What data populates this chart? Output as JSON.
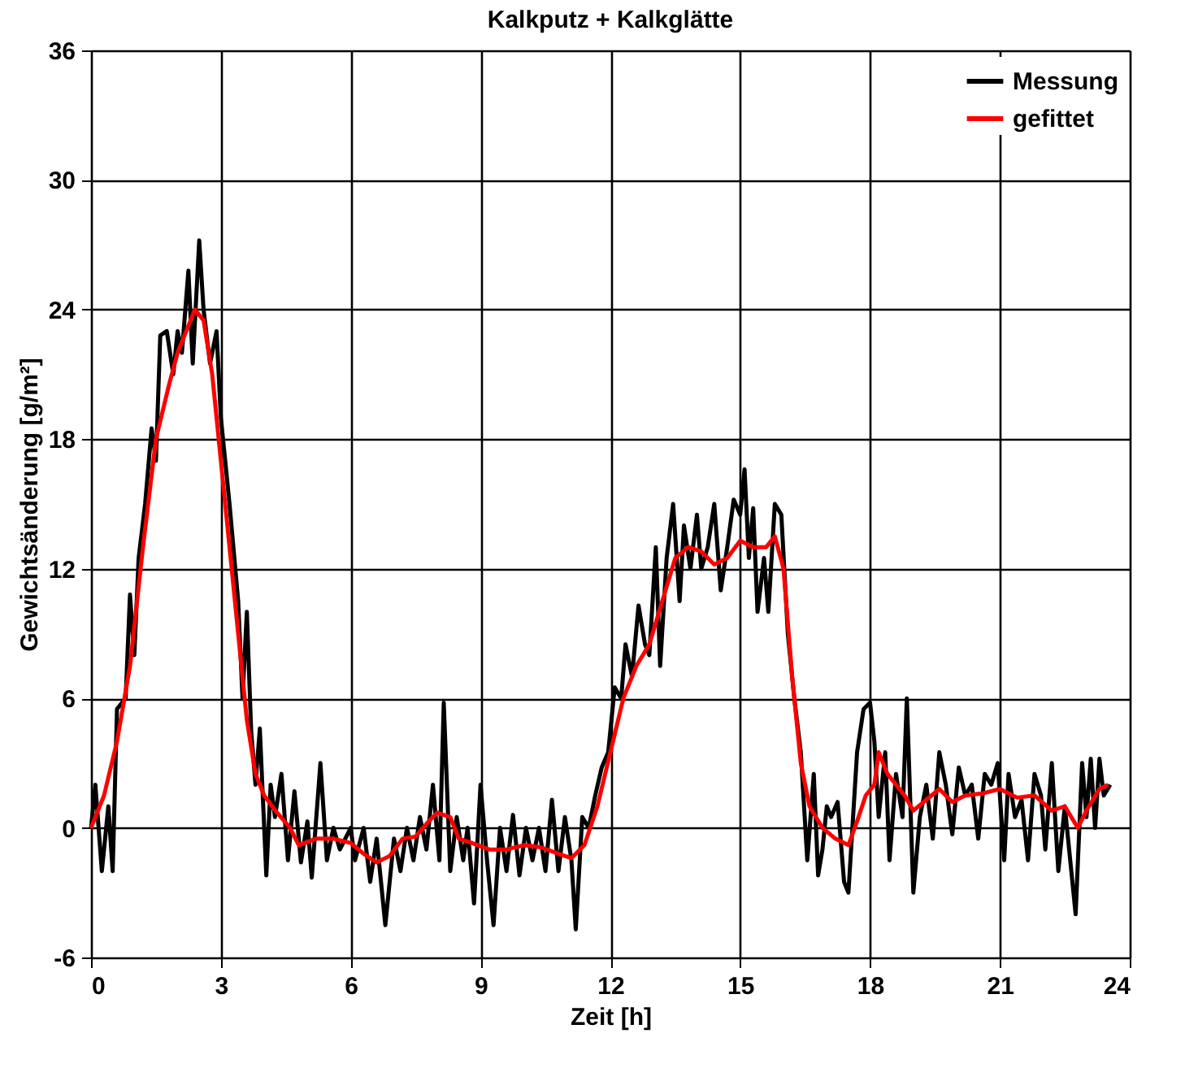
{
  "chart_data": {
    "type": "line",
    "title": "Kalkputz + Kalkglätte",
    "xlabel": "Zeit [h]",
    "ylabel": "Gewichtsänderung [g/m²]",
    "xlim": [
      0,
      24
    ],
    "xticks": [
      0,
      3,
      6,
      9,
      12,
      15,
      18,
      21,
      24
    ],
    "ylim": [
      -6,
      36
    ],
    "yticks": [
      -6,
      0,
      6,
      12,
      18,
      24,
      30,
      36
    ],
    "grid": true,
    "legend": "top right",
    "line_style": "solid",
    "marker": "none",
    "series": [
      {
        "name": "Messung",
        "color": "#000000",
        "x": [
          0,
          0.1,
          0.25,
          0.4,
          0.5,
          0.6,
          0.8,
          0.9,
          1.0,
          1.1,
          1.25,
          1.4,
          1.5,
          1.6,
          1.75,
          1.9,
          2.0,
          2.1,
          2.25,
          2.35,
          2.5,
          2.6,
          2.75,
          2.9,
          3.0,
          3.2,
          3.4,
          3.5,
          3.6,
          3.7,
          3.8,
          3.9,
          4.05,
          4.15,
          4.25,
          4.4,
          4.55,
          4.7,
          4.85,
          5.0,
          5.1,
          5.3,
          5.45,
          5.6,
          5.75,
          6.0,
          6.1,
          6.3,
          6.45,
          6.6,
          6.8,
          7.0,
          7.15,
          7.3,
          7.45,
          7.6,
          7.75,
          7.9,
          8.05,
          8.15,
          8.3,
          8.45,
          8.6,
          8.7,
          8.85,
          9.0,
          9.15,
          9.3,
          9.45,
          9.6,
          9.75,
          9.9,
          10.05,
          10.2,
          10.35,
          10.5,
          10.65,
          10.8,
          10.95,
          11.1,
          11.2,
          11.35,
          11.5,
          11.65,
          11.8,
          11.95,
          12.1,
          12.25,
          12.35,
          12.5,
          12.65,
          12.8,
          12.9,
          13.05,
          13.15,
          13.3,
          13.45,
          13.6,
          13.7,
          13.85,
          14.0,
          14.1,
          14.25,
          14.4,
          14.55,
          14.7,
          14.85,
          15.0,
          15.1,
          15.2,
          15.3,
          15.4,
          15.55,
          15.65,
          15.8,
          15.95,
          16.1,
          16.25,
          16.4,
          16.55,
          16.7,
          16.8,
          16.9,
          17.0,
          17.1,
          17.25,
          17.4,
          17.5,
          17.7,
          17.85,
          18.0,
          18.1,
          18.2,
          18.35,
          18.45,
          18.6,
          18.75,
          18.85,
          19.0,
          19.15,
          19.3,
          19.45,
          19.6,
          19.75,
          19.9,
          20.05,
          20.2,
          20.35,
          20.5,
          20.65,
          20.8,
          20.95,
          21.1,
          21.2,
          21.35,
          21.5,
          21.65,
          21.8,
          21.95,
          22.05,
          22.2,
          22.35,
          22.5,
          22.6,
          22.75,
          22.9,
          23.0,
          23.1,
          23.2,
          23.3,
          23.4,
          23.55
        ],
        "values": [
          0,
          2,
          -2,
          1,
          -2,
          5.5,
          6,
          10.8,
          8,
          12.5,
          15,
          18.5,
          17,
          22.8,
          23,
          21,
          23,
          22,
          25.8,
          21.5,
          27.2,
          24,
          21.5,
          23,
          19,
          15,
          10.5,
          6,
          10,
          4.5,
          2,
          4.6,
          -2.2,
          2,
          0.5,
          2.5,
          -1.5,
          1.7,
          -1.6,
          0.3,
          -2.3,
          3,
          -1.5,
          0,
          -1,
          0,
          -1.5,
          0,
          -2.5,
          -0.5,
          -4.5,
          -0.5,
          -2,
          0,
          -1.5,
          0.5,
          -1,
          2,
          -1.5,
          5.8,
          -2,
          0.5,
          -1.5,
          0,
          -3.5,
          2,
          -1.5,
          -4.5,
          0,
          -2,
          0.6,
          -2.2,
          0,
          -1.5,
          0,
          -2,
          1.3,
          -2,
          0.5,
          -1.5,
          -4.7,
          0.5,
          0,
          1.5,
          2.8,
          3.5,
          6.5,
          6,
          8.5,
          7,
          10.3,
          8.5,
          8,
          13,
          7.5,
          12.5,
          15,
          10.5,
          14,
          12,
          14.5,
          12,
          13,
          15,
          11,
          13,
          15.2,
          14.5,
          16.6,
          12.5,
          14.8,
          10,
          12.5,
          10,
          15,
          14.5,
          9,
          6,
          3.5,
          -1.5,
          2.5,
          -2.2,
          -1,
          1,
          0.5,
          1.2,
          -2.5,
          -3,
          3.5,
          5.5,
          5.8,
          4,
          0.5,
          3.5,
          -1.5,
          2.5,
          0.5,
          6,
          -3,
          0.5,
          2,
          -0.5,
          3.5,
          2,
          -0.3,
          2.8,
          1.5,
          2,
          -0.5,
          2.5,
          2,
          3,
          -1.5,
          2.5,
          0.5,
          1.3,
          -1.5,
          2.5,
          1.5,
          -1,
          3,
          -2,
          1,
          -1,
          -4,
          3,
          0.5,
          3.2,
          0,
          3.2,
          1.5,
          2
        ]
      },
      {
        "name": "gefittet",
        "color": "#ff0000",
        "x": [
          0,
          0.3,
          0.6,
          0.9,
          1.2,
          1.5,
          1.8,
          2.0,
          2.2,
          2.4,
          2.6,
          2.8,
          3.0,
          3.2,
          3.4,
          3.6,
          3.8,
          4.0,
          4.3,
          4.6,
          4.8,
          5.2,
          5.6,
          6.0,
          6.3,
          6.6,
          6.9,
          7.2,
          7.5,
          7.8,
          8.0,
          8.3,
          8.5,
          8.8,
          9.2,
          9.6,
          10.0,
          10.4,
          10.8,
          11.1,
          11.4,
          11.7,
          12.0,
          12.3,
          12.6,
          12.9,
          13.2,
          13.5,
          13.8,
          14.1,
          14.4,
          14.7,
          15.0,
          15.3,
          15.6,
          15.8,
          16.0,
          16.2,
          16.4,
          16.6,
          16.9,
          17.2,
          17.5,
          17.7,
          17.9,
          18.1,
          18.2,
          18.4,
          18.6,
          18.8,
          19.0,
          19.3,
          19.6,
          19.9,
          20.2,
          20.6,
          21.0,
          21.4,
          21.8,
          22.2,
          22.5,
          22.8,
          23.0,
          23.3,
          23.5
        ],
        "values": [
          0,
          1.5,
          4,
          7.5,
          13,
          18,
          20.5,
          22,
          23,
          24,
          23.5,
          21,
          17,
          13,
          9,
          5,
          2.5,
          1.5,
          0.7,
          0,
          -0.8,
          -0.5,
          -0.5,
          -0.7,
          -1.2,
          -1.6,
          -1.3,
          -0.5,
          -0.4,
          0.3,
          0.7,
          0.5,
          -0.5,
          -0.7,
          -1,
          -1,
          -0.8,
          -0.9,
          -1.2,
          -1.4,
          -0.8,
          1,
          3.5,
          6,
          7.5,
          8.5,
          10.5,
          12.5,
          13,
          12.8,
          12.2,
          12.5,
          13.3,
          13,
          13,
          13.5,
          12,
          7,
          3,
          1,
          0,
          -0.5,
          -0.8,
          0.3,
          1.5,
          2,
          3.5,
          2.5,
          2,
          1.5,
          0.8,
          1.3,
          1.8,
          1.2,
          1.5,
          1.6,
          1.8,
          1.4,
          1.5,
          0.8,
          1,
          0,
          0.8,
          1.8,
          2
        ]
      }
    ]
  }
}
